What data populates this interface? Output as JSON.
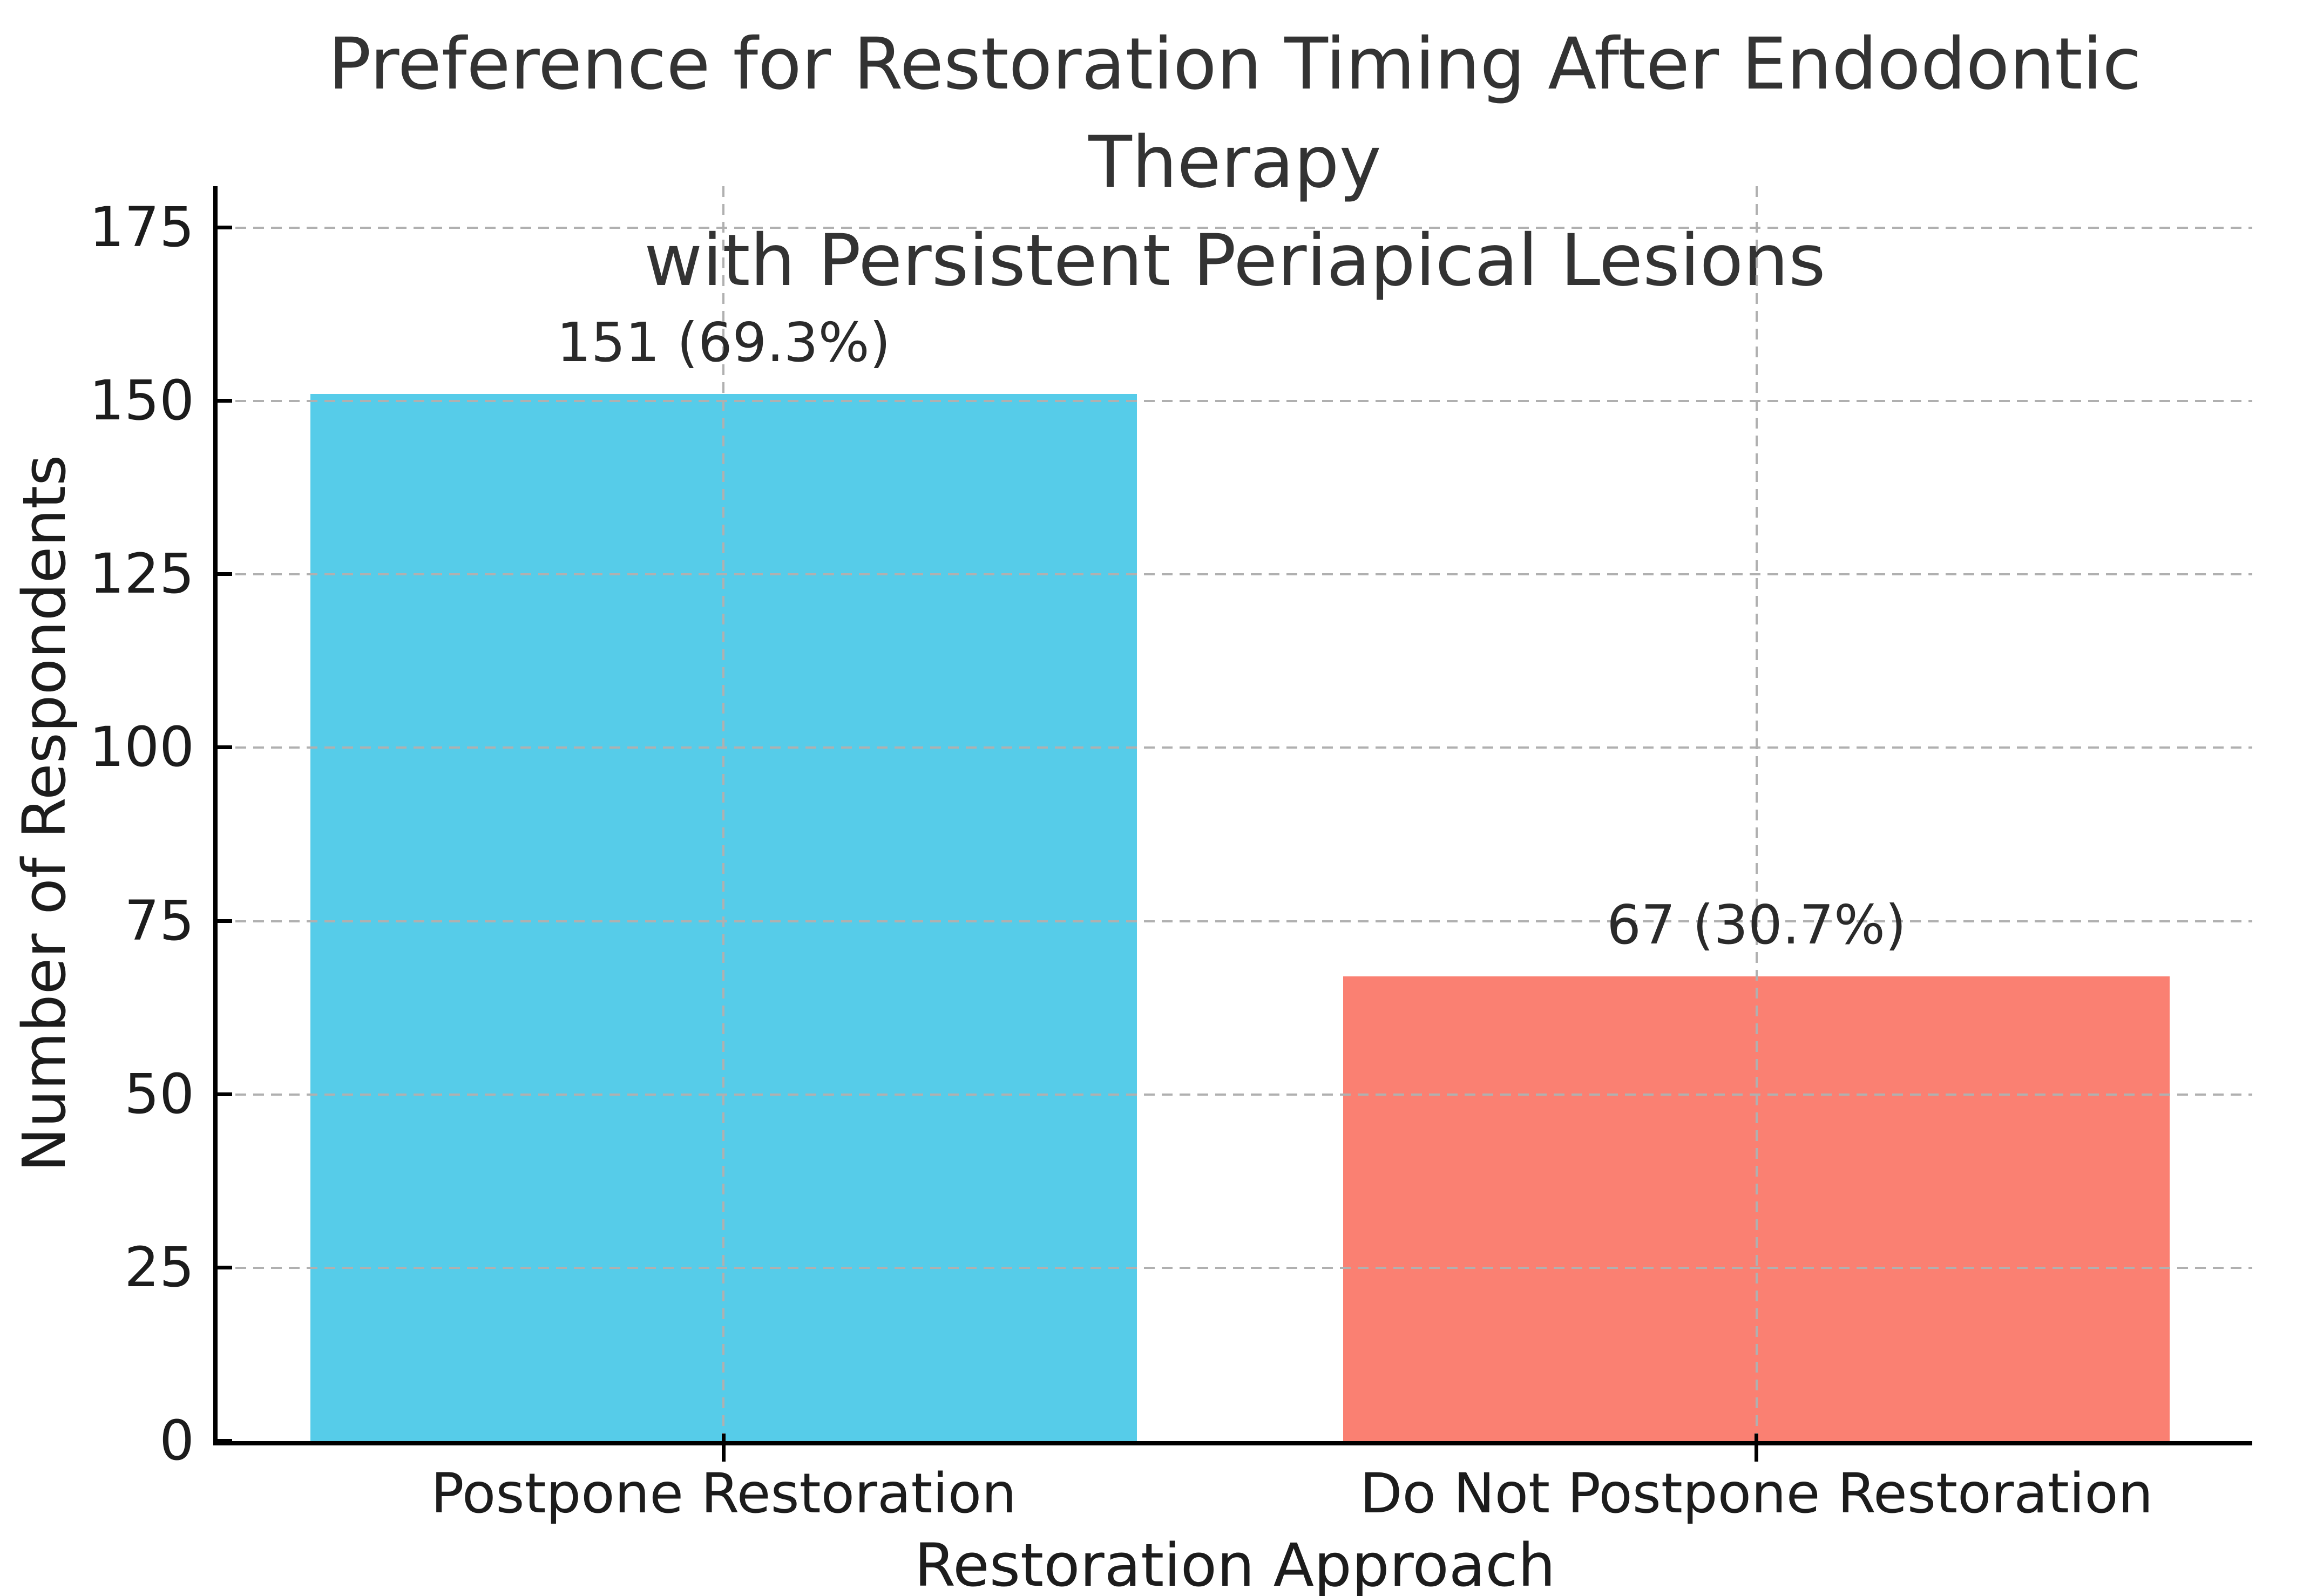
{
  "figure": {
    "title": "Preference for Restoration Timing After Endodontic Therapy with Persistent Periapical Lesions",
    "title_lines": [
      "Preference for Restoration Timing After Endodontic Therapy",
      "with Persistent Periapical Lesions"
    ],
    "background": "#ffffff"
  },
  "chart_data": {
    "type": "bar",
    "title": "Preference for Restoration Timing After Endodontic Therapy with Persistent Periapical Lesions",
    "categories": [
      "Postpone Restoration",
      "Do Not Postpone Restoration"
    ],
    "values": [
      151,
      67
    ],
    "percentages": [
      69.3,
      30.7
    ],
    "data_labels": [
      "151 (69.3%)",
      "67 (30.7%)"
    ],
    "bar_colors": [
      "#56CCE9",
      "#FA8072"
    ],
    "xlabel": "Restoration Approach",
    "ylabel": "Number of Respondents",
    "yticks": [
      0,
      25,
      50,
      75,
      100,
      125,
      150,
      175
    ],
    "ylim": [
      0,
      181
    ],
    "xlim": [
      -0.49,
      1.48
    ],
    "bar_width": 0.8,
    "grid": {
      "on": true,
      "axis": "both",
      "style": "dashed",
      "color": "#b0b0b0",
      "above_bars": true
    },
    "spine_color": "#000000",
    "text_color": "#1c1c1c",
    "title_color": "#333333",
    "legend": "none"
  }
}
